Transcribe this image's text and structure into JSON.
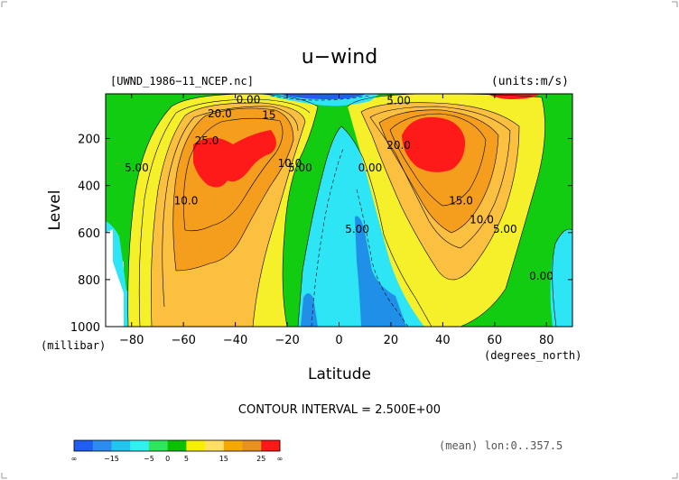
{
  "chart_data": {
    "type": "contour",
    "title": "u−wind",
    "source_label": "[UWND_1986−11_NCEP.nc]",
    "units_label": "(units:m/s)",
    "xlabel": "Latitude",
    "x_units": "(degrees_north)",
    "ylabel": "Level",
    "y_units": "(millibar)",
    "xlim": [
      -90,
      90
    ],
    "ylim": [
      1000,
      10
    ],
    "x_ticks": [
      -80,
      -60,
      -40,
      -20,
      0,
      20,
      40,
      60,
      80
    ],
    "y_ticks": [
      200,
      400,
      600,
      800,
      1000
    ],
    "contour_interval_label": "CONTOUR INTERVAL = 2.500E+00",
    "mean_label": "(mean) lon:0..357.5",
    "colorbar": {
      "tick_labels": [
        "∞",
        "−15",
        "−5",
        "0",
        "5",
        "15",
        "25",
        "∞"
      ],
      "colors": [
        "#1f5ef0",
        "#2d8cf0",
        "#22c4f0",
        "#30f0f0",
        "#2ee65c",
        "#0ac000",
        "#f4f000",
        "#ffe066",
        "#f4a800",
        "#e89020",
        "#ff1818"
      ]
    },
    "contour_labels": [
      {
        "text": "0.00",
        "x": -35,
        "y": 50
      },
      {
        "text": "20.0",
        "x": -46,
        "y": 110
      },
      {
        "text": "15",
        "x": -27,
        "y": 115
      },
      {
        "text": "25.0",
        "x": -51,
        "y": 225
      },
      {
        "text": "5.00",
        "x": -78,
        "y": 340
      },
      {
        "text": "10.0",
        "x": -59,
        "y": 480
      },
      {
        "text": "10.0",
        "x": -19,
        "y": 320
      },
      {
        "text": "5.00",
        "x": -15,
        "y": 340
      },
      {
        "text": "5.00",
        "x": 23,
        "y": 55
      },
      {
        "text": "20.0",
        "x": 23,
        "y": 245
      },
      {
        "text": "0.00",
        "x": 12,
        "y": 340
      },
      {
        "text": "5.00",
        "x": 7,
        "y": 600
      },
      {
        "text": "15.0",
        "x": 47,
        "y": 480
      },
      {
        "text": "10.0",
        "x": 55,
        "y": 560
      },
      {
        "text": "5.00",
        "x": 64,
        "y": 600
      },
      {
        "text": "0.00",
        "x": 78,
        "y": 800
      }
    ],
    "jets": [
      {
        "name_hidden": "",
        "center_lat": -50,
        "center_level": 220,
        "max_value": 27.5
      },
      {
        "name_hidden": "",
        "center_lat": 35,
        "center_level": 200,
        "max_value": 27.5
      }
    ]
  }
}
